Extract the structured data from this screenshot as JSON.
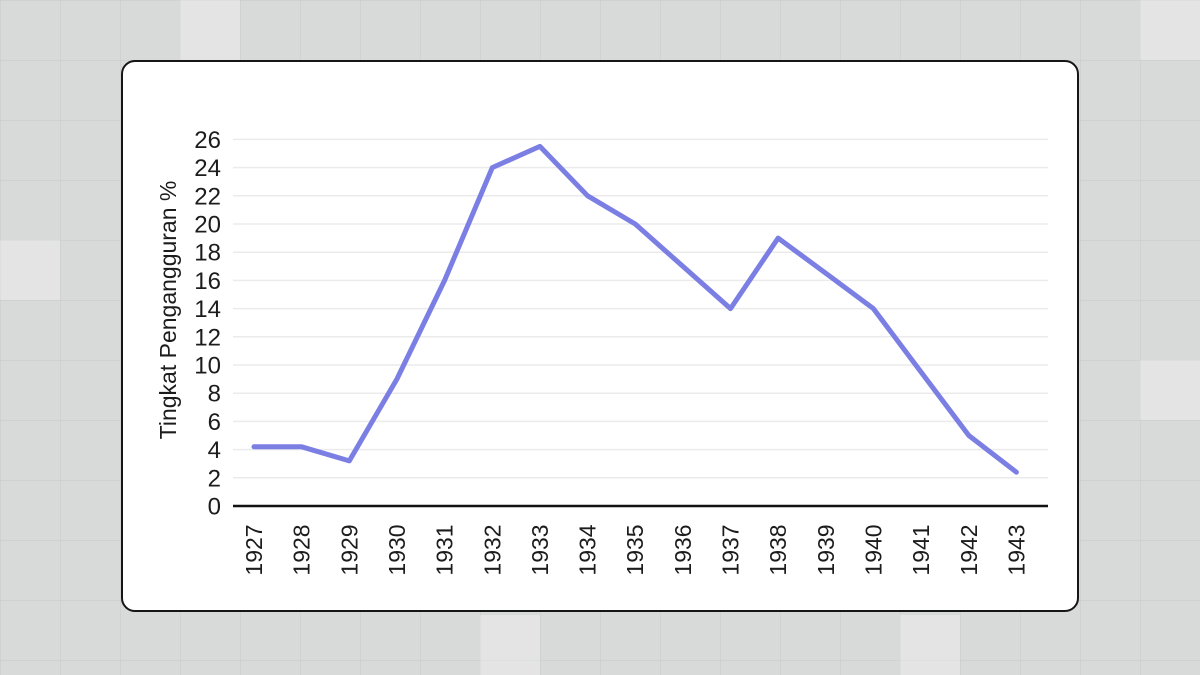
{
  "page": {
    "background_color": "#d8dad9",
    "card_background": "#ffffff",
    "card_border_color": "#161616"
  },
  "chart_data": {
    "type": "line",
    "title": "",
    "xlabel": "",
    "ylabel": "Tingkat Pengangguran %",
    "x": [
      "1927",
      "1928",
      "1929",
      "1930",
      "1931",
      "1932",
      "1933",
      "1934",
      "1935",
      "1936",
      "1937",
      "1938",
      "1939",
      "1940",
      "1941",
      "1942",
      "1943"
    ],
    "series": [
      {
        "name": "Tingkat Pengangguran %",
        "color": "#7b7fe4",
        "values": [
          4.2,
          4.2,
          3.2,
          9,
          16,
          24,
          25.5,
          22,
          20,
          17,
          14,
          19,
          16.5,
          14,
          9.5,
          5,
          2.4
        ]
      }
    ],
    "ylim": [
      0,
      26
    ],
    "ytick_step": 2,
    "yticks": [
      "0",
      "2",
      "4",
      "6",
      "8",
      "10",
      "12",
      "14",
      "16",
      "18",
      "20",
      "22",
      "24",
      "26"
    ],
    "grid": "horizontal-only",
    "legend": "none",
    "line_width": 5,
    "axis_color": "#111111",
    "gridline_color": "#ebebeb",
    "text_color": "#1c1c1c"
  }
}
